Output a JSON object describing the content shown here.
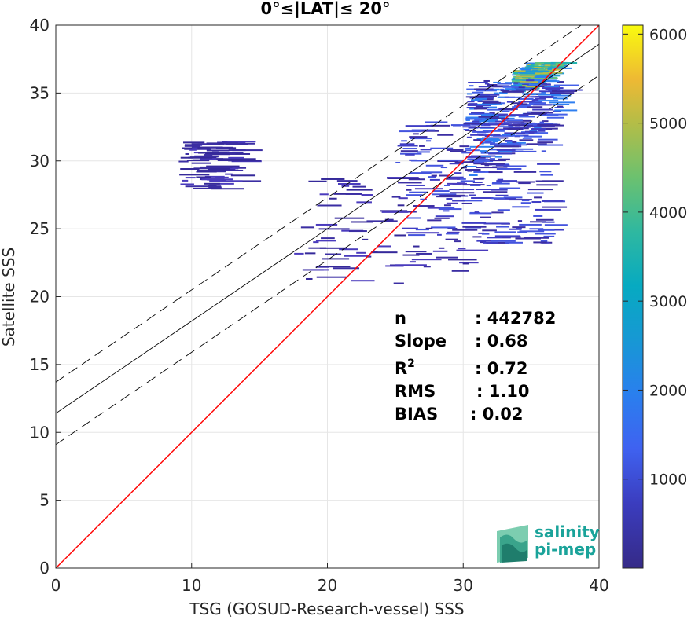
{
  "chart_data": {
    "type": "heatmap",
    "title": "0°≤|LAT|≤ 20°",
    "xlabel": "TSG (GOSUD-Research-vessel) SSS",
    "ylabel": "Satellite SSS",
    "xlim": [
      0,
      40
    ],
    "ylim": [
      0,
      40
    ],
    "xticks": [
      "0",
      "10",
      "20",
      "30",
      "40"
    ],
    "yticks": [
      "0",
      "5",
      "10",
      "15",
      "20",
      "25",
      "30",
      "35",
      "40"
    ],
    "grid": true,
    "colorbar": {
      "range": [
        0,
        6100
      ],
      "ticks": [
        "1000",
        "2000",
        "3000",
        "4000",
        "5000",
        "6000"
      ],
      "colormap": "parula"
    },
    "lines": [
      {
        "role": "one-to-one",
        "color": "#ff0000",
        "intercept": 0,
        "slope": 1
      },
      {
        "role": "regression",
        "color": "#000000",
        "style": "solid",
        "intercept": 11.4,
        "slope": 0.68
      },
      {
        "role": "upper-bound",
        "color": "#000000",
        "style": "dashed",
        "intercept": 13.7,
        "slope": 0.68
      },
      {
        "role": "lower-bound",
        "color": "#000000",
        "style": "dashed",
        "intercept": 9.1,
        "slope": 0.68
      }
    ],
    "density_clusters": [
      {
        "x": [
          33.5,
          37.2
        ],
        "y": [
          33.5,
          37.3
        ],
        "level": "high"
      },
      {
        "x": [
          30,
          37
        ],
        "y": [
          28,
          36
        ],
        "level": "medium"
      },
      {
        "x": [
          25,
          36
        ],
        "y": [
          24,
          33
        ],
        "level": "low"
      },
      {
        "x": [
          17,
          30
        ],
        "y": [
          21,
          29
        ],
        "level": "sparse"
      },
      {
        "x": [
          9,
          13
        ],
        "y": [
          28,
          31.5
        ],
        "level": "sparse"
      }
    ],
    "stats": [
      {
        "label": "n",
        "value": ": 442782"
      },
      {
        "label": "Slope",
        "value": ": 0.68"
      },
      {
        "label": "R",
        "sup": "2",
        "value": ": 0.72"
      },
      {
        "label": "RMS",
        "value": ": 1.10"
      },
      {
        "label": "BIAS",
        "value": ": 0.02"
      }
    ]
  },
  "logo": {
    "line1": "salinity",
    "line2": "pi-mep"
  }
}
